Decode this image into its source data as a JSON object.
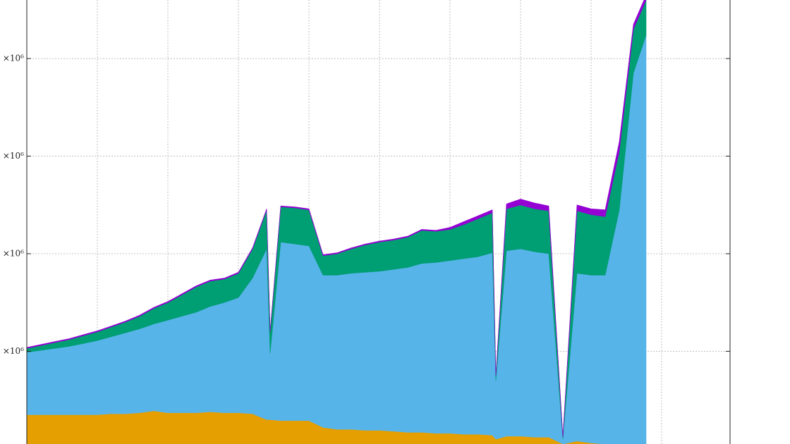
{
  "chart_data": {
    "type": "stacked-area",
    "x": [
      0,
      0.2,
      0.4,
      0.6,
      0.8,
      1,
      1.2,
      1.4,
      1.6,
      1.8,
      2,
      2.2,
      2.4,
      2.6,
      2.8,
      3,
      3.2,
      3.4,
      3.45,
      3.6,
      3.8,
      4,
      4.2,
      4.4,
      4.6,
      4.8,
      5,
      5.2,
      5.4,
      5.6,
      5.8,
      6,
      6.2,
      6.4,
      6.6,
      6.65,
      6.8,
      7,
      7.2,
      7.4,
      7.6,
      7.8,
      8,
      8.2,
      8.4,
      8.6,
      8.78
    ],
    "series": [
      {
        "color": "#e69f00",
        "values": [
          350000,
          350000,
          350000,
          350000,
          350000,
          350000,
          360000,
          360000,
          370000,
          390000,
          370000,
          370000,
          370000,
          380000,
          370000,
          370000,
          360000,
          300000,
          300000,
          290000,
          290000,
          290000,
          220000,
          200000,
          200000,
          190000,
          190000,
          180000,
          170000,
          170000,
          160000,
          160000,
          150000,
          150000,
          140000,
          100000,
          130000,
          130000,
          120000,
          120000,
          50000,
          80000,
          60000,
          50000,
          50000,
          50000,
          50000
        ]
      },
      {
        "color": "#56b4e9",
        "values": [
          640000,
          660000,
          680000,
          700000,
          730000,
          760000,
          790000,
          830000,
          860000,
          890000,
          950000,
          990000,
          1030000,
          1080000,
          1130000,
          1180000,
          1390000,
          1750000,
          680000,
          1830000,
          1810000,
          1790000,
          1560000,
          1580000,
          1600000,
          1620000,
          1630000,
          1660000,
          1690000,
          1730000,
          1750000,
          1770000,
          1800000,
          1820000,
          1870000,
          600000,
          1900000,
          1920000,
          1900000,
          1880000,
          50000,
          1720000,
          1720000,
          1730000,
          2400000,
          3800000,
          4190000
        ]
      },
      {
        "color": "#009e73",
        "values": [
          40000,
          50000,
          60000,
          70000,
          80000,
          90000,
          100000,
          110000,
          130000,
          160000,
          180000,
          220000,
          260000,
          260000,
          240000,
          250000,
          300000,
          400000,
          220000,
          360000,
          370000,
          370000,
          200000,
          220000,
          250000,
          280000,
          300000,
          300000,
          310000,
          340000,
          320000,
          320000,
          350000,
          390000,
          410000,
          50000,
          430000,
          450000,
          440000,
          440000,
          20000,
          640000,
          620000,
          600000,
          600000,
          450000,
          360000
        ]
      },
      {
        "color": "#9400d3",
        "values": [
          10000,
          10000,
          10000,
          10000,
          10000,
          10000,
          10000,
          10000,
          10000,
          10000,
          10000,
          10000,
          10000,
          10000,
          10000,
          10000,
          10000,
          10000,
          10000,
          10000,
          10000,
          10000,
          10000,
          10000,
          10000,
          10000,
          10000,
          10000,
          10000,
          10000,
          10000,
          20000,
          30000,
          30000,
          30000,
          10000,
          50000,
          60000,
          60000,
          50000,
          10000,
          60000,
          60000,
          70000,
          100000,
          50000,
          50000
        ]
      }
    ],
    "xlim": [
      0,
      9.97
    ],
    "xticks": [
      1,
      2,
      3,
      4,
      5,
      6,
      7,
      8,
      9
    ],
    "ylim": [
      50000,
      4600000
    ],
    "yticks": [
      {
        "value": 1000000,
        "label": "×10⁶"
      },
      {
        "value": 2000000,
        "label": "×10⁶"
      },
      {
        "value": 3000000,
        "label": "×10⁶"
      },
      {
        "value": 4000000,
        "label": "×10⁶"
      }
    ],
    "grid": true
  }
}
